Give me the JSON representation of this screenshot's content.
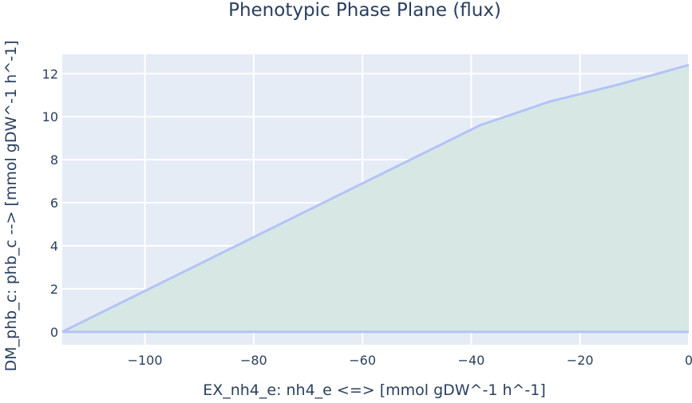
{
  "chart_data": {
    "type": "area",
    "title": "Phenotypic Phase Plane (flux)",
    "xlabel": "EX_nh4_e: nh4_e <=>  [mmol gDW^-1 h^-1]",
    "ylabel": "DM_phb_c: phb_c -->  [mmol gDW^-1 h^-1]",
    "xlim": [
      -115.2,
      0
    ],
    "ylim": [
      -0.6,
      12.9
    ],
    "xticks": [
      -100,
      -80,
      -60,
      -40,
      -20,
      0
    ],
    "yticks": [
      0,
      2,
      4,
      6,
      8,
      10,
      12
    ],
    "grid": true,
    "series": [
      {
        "x": [
          -115.2,
          -38.4,
          -25.6,
          -12.8,
          0
        ],
        "upper": [
          0.0,
          9.6,
          10.7,
          11.5,
          12.4
        ],
        "lower": [
          0.0,
          0.0,
          0.0,
          0.0,
          0.0
        ],
        "line_color": "#b4c3f7",
        "fill_color": "#d7e8e4"
      }
    ],
    "colors": {
      "plot_background": "#e5ecf6",
      "grid": "#ffffff",
      "text": "#2a3f5f"
    }
  }
}
